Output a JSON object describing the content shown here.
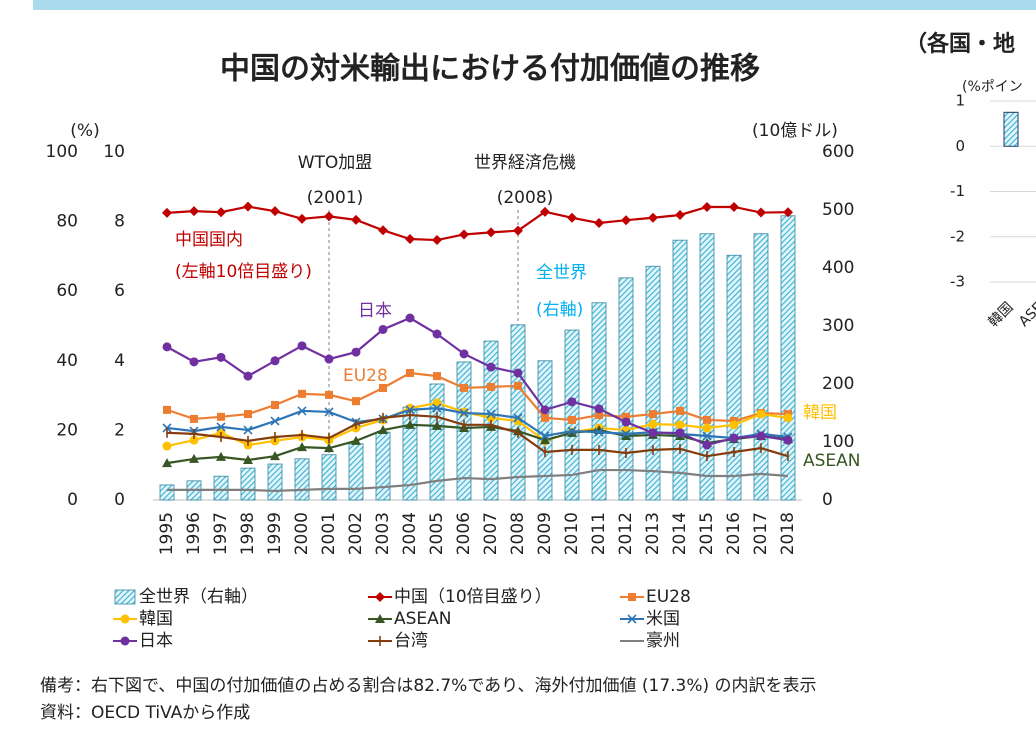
{
  "chart_data": [
    {
      "type": "combo",
      "title": "中国の対米輸出における付加価値の推移",
      "y_label": "(%)",
      "y2_label": "(10億ドル)",
      "categories": [
        "1995",
        "1996",
        "1997",
        "1998",
        "1999",
        "2000",
        "2001",
        "2002",
        "2003",
        "2004",
        "2005",
        "2006",
        "2007",
        "2008",
        "2009",
        "2010",
        "2011",
        "2012",
        "2013",
        "2014",
        "2015",
        "2016",
        "2017",
        "2018"
      ],
      "ylim": [
        0,
        10
      ],
      "yticks": [
        0,
        2,
        4,
        6,
        8,
        10
      ],
      "y_outer_lim": [
        0,
        100
      ],
      "y_outer_ticks": [
        0,
        20,
        40,
        60,
        80,
        100
      ],
      "y2lim": [
        0,
        600
      ],
      "y2ticks": [
        0,
        100,
        200,
        300,
        400,
        500,
        600
      ],
      "series": [
        {
          "name": "全世界（右軸）",
          "kind": "bar",
          "axis": "y2",
          "color": "#5fc8e3",
          "values": [
            26,
            33,
            41,
            55,
            62,
            71,
            78,
            97,
            117,
            160,
            200,
            238,
            274,
            302,
            240,
            293,
            340,
            383,
            403,
            448,
            459,
            422,
            459,
            490
          ]
        },
        {
          "name": "中国（10倍目盛り）",
          "kind": "line",
          "axis": "y_outer",
          "marker": "diamond",
          "color": "#c00000",
          "values": [
            82.5,
            83,
            82.7,
            84.3,
            83,
            80.8,
            81.5,
            80.5,
            77.5,
            75,
            74.7,
            76.3,
            76.9,
            77.4,
            82.8,
            81.1,
            79.6,
            80.4,
            81.1,
            81.9,
            84.2,
            84.2,
            82.6,
            82.7
          ]
        },
        {
          "name": "EU28",
          "kind": "line",
          "marker": "square",
          "color": "#ed7d31",
          "values": [
            2.59,
            2.33,
            2.39,
            2.47,
            2.73,
            3.05,
            3.02,
            2.84,
            3.22,
            3.65,
            3.56,
            3.22,
            3.25,
            3.28,
            2.36,
            2.3,
            2.44,
            2.39,
            2.47,
            2.56,
            2.3,
            2.27,
            2.5,
            2.47
          ]
        },
        {
          "name": "韓国",
          "kind": "line",
          "marker": "circle",
          "color": "#ffc000",
          "values": [
            1.55,
            1.72,
            1.93,
            1.58,
            1.7,
            1.81,
            1.72,
            2.07,
            2.3,
            2.64,
            2.79,
            2.53,
            2.36,
            2.27,
            1.7,
            1.95,
            2.07,
            2.01,
            2.18,
            2.16,
            2.07,
            2.16,
            2.47,
            2.36
          ]
        },
        {
          "name": "ASEAN",
          "kind": "line",
          "marker": "triangle",
          "color": "#375623",
          "values": [
            1.06,
            1.18,
            1.24,
            1.15,
            1.26,
            1.52,
            1.49,
            1.7,
            2.01,
            2.16,
            2.13,
            2.07,
            2.1,
            1.98,
            1.72,
            1.93,
            2.01,
            1.84,
            1.87,
            1.84,
            1.64,
            1.75,
            1.84,
            1.75
          ]
        },
        {
          "name": "米国",
          "kind": "line",
          "marker": "x",
          "color": "#2e75b6",
          "values": [
            2.07,
            1.98,
            2.1,
            2.01,
            2.27,
            2.56,
            2.53,
            2.24,
            2.33,
            2.59,
            2.64,
            2.5,
            2.47,
            2.36,
            1.84,
            1.98,
            1.95,
            1.9,
            1.95,
            1.9,
            1.84,
            1.78,
            1.9,
            1.81
          ]
        },
        {
          "name": "日本",
          "kind": "line",
          "marker": "circle",
          "color": "#7030a0",
          "values": [
            4.4,
            3.97,
            4.1,
            3.56,
            4.0,
            4.43,
            4.05,
            4.25,
            4.9,
            5.23,
            4.77,
            4.2,
            3.82,
            3.65,
            2.59,
            2.82,
            2.62,
            2.24,
            1.93,
            1.93,
            1.58,
            1.78,
            1.84,
            1.72
          ]
        },
        {
          "name": "台湾",
          "kind": "line",
          "marker": "plus",
          "color": "#843c0c",
          "values": [
            1.93,
            1.9,
            1.81,
            1.7,
            1.81,
            1.87,
            1.78,
            2.18,
            2.36,
            2.44,
            2.39,
            2.16,
            2.16,
            1.93,
            1.38,
            1.44,
            1.44,
            1.35,
            1.44,
            1.47,
            1.26,
            1.38,
            1.49,
            1.26
          ]
        },
        {
          "name": "豪州",
          "kind": "line",
          "marker": "none",
          "color": "#7f7f7f",
          "values": [
            0.29,
            0.29,
            0.29,
            0.29,
            0.26,
            0.29,
            0.32,
            0.32,
            0.37,
            0.43,
            0.55,
            0.63,
            0.6,
            0.66,
            0.69,
            0.72,
            0.86,
            0.86,
            0.83,
            0.78,
            0.69,
            0.69,
            0.75,
            0.69
          ]
        }
      ],
      "annotations": [
        {
          "text": "WTO加盟",
          "color": "#222"
        },
        {
          "text": "(2001)",
          "color": "#222"
        },
        {
          "text": "世界経済危機",
          "color": "#222"
        },
        {
          "text": "(2008)",
          "color": "#222"
        },
        {
          "text": "中国国内",
          "color": "#c00000"
        },
        {
          "text": "(左軸10倍目盛り)",
          "color": "#c00000"
        },
        {
          "text": "日本",
          "color": "#7030a0"
        },
        {
          "text": "EU28",
          "color": "#ed7d31"
        },
        {
          "text": "全世界",
          "color": "#00b0f0"
        },
        {
          "text": "(右軸)",
          "color": "#00b0f0"
        },
        {
          "text": "韓国",
          "color": "#ffc000"
        },
        {
          "text": "ASEAN",
          "color": "#375623"
        }
      ],
      "reference_lines": [
        "2001",
        "2008"
      ]
    },
    {
      "type": "bar",
      "title": "（各国・地",
      "y_label": "(%ポイン",
      "categories": [
        "韓国",
        "ASE"
      ],
      "values": [
        0.75,
        null
      ],
      "color": "#5fc8e3",
      "ylim": [
        -3,
        1
      ],
      "yticks": [
        -3,
        -2,
        -1,
        0,
        1
      ],
      "grid": true
    }
  ],
  "notes": [
    "備考：右下図で、中国の付加価値の占める割合は82.7%であり、海外付加価値 (17.3%) の内訳を表示",
    "資料：OECD TiVAから作成"
  ]
}
